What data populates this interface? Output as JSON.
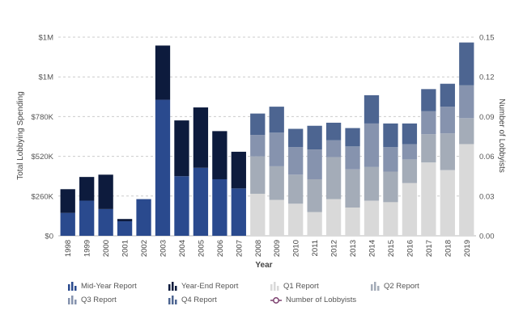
{
  "chart_data": {
    "type": "bar",
    "stacked": true,
    "categories": [
      "1998",
      "1999",
      "2000",
      "2001",
      "2002",
      "2003",
      "2004",
      "2005",
      "2006",
      "2007",
      "2008",
      "2009",
      "2010",
      "2011",
      "2012",
      "2013",
      "2014",
      "2015",
      "2016",
      "2017",
      "2018",
      "2019"
    ],
    "xlabel": "Year",
    "ylabel": "Total Lobbying Spending",
    "y2label": "Number of Lobbyists",
    "ylim": [
      0,
      1300000
    ],
    "yticks": [
      "$0",
      "$260K",
      "$520K",
      "$780K",
      "$1M",
      "$1M"
    ],
    "y2lim": [
      0,
      0.15
    ],
    "y2ticks": [
      "0.00",
      "0.03",
      "0.06",
      "0.09",
      "0.12",
      "0.15"
    ],
    "grid": true,
    "legend_position": "bottom",
    "series": [
      {
        "name": "Mid-Year Report",
        "color": "#2a4a8e",
        "values": [
          150000,
          230000,
          175000,
          95000,
          240000,
          890000,
          390000,
          445000,
          370000,
          310000,
          null,
          null,
          null,
          null,
          null,
          null,
          null,
          null,
          null,
          null,
          null,
          null
        ]
      },
      {
        "name": "Year-End Report",
        "color": "#0d1b3d",
        "values": [
          155000,
          155000,
          225000,
          15000,
          0,
          355000,
          365000,
          395000,
          315000,
          240000,
          null,
          null,
          null,
          null,
          null,
          null,
          null,
          null,
          null,
          null,
          null,
          null
        ]
      },
      {
        "name": "Q1 Report",
        "color": "#d9d9d9",
        "values": [
          null,
          null,
          null,
          null,
          null,
          null,
          null,
          null,
          null,
          null,
          275000,
          235000,
          210000,
          155000,
          240000,
          185000,
          230000,
          220000,
          345000,
          480000,
          430000,
          600000
        ]
      },
      {
        "name": "Q2 Report",
        "color": "#a4acb8",
        "values": [
          null,
          null,
          null,
          null,
          null,
          null,
          null,
          null,
          null,
          null,
          245000,
          220000,
          190000,
          215000,
          275000,
          250000,
          220000,
          200000,
          155000,
          185000,
          240000,
          170000
        ]
      },
      {
        "name": "Q3 Report",
        "color": "#8693ae",
        "values": [
          null,
          null,
          null,
          null,
          null,
          null,
          null,
          null,
          null,
          null,
          140000,
          220000,
          180000,
          195000,
          110000,
          150000,
          285000,
          160000,
          100000,
          150000,
          175000,
          215000
        ]
      },
      {
        "name": "Q4 Report",
        "color": "#4d6591",
        "values": [
          null,
          null,
          null,
          null,
          null,
          null,
          null,
          null,
          null,
          null,
          140000,
          170000,
          120000,
          155000,
          115000,
          120000,
          185000,
          155000,
          135000,
          145000,
          150000,
          280000
        ]
      }
    ],
    "line_series": {
      "name": "Number of Lobbyists",
      "color": "#7b3f6e",
      "values": []
    }
  },
  "legend": [
    {
      "label": "Mid-Year Report",
      "icon": "bar-icon",
      "color": "#2a4a8e"
    },
    {
      "label": "Year-End Report",
      "icon": "bar-icon",
      "color": "#0d1b3d"
    },
    {
      "label": "Q1 Report",
      "icon": "bar-icon",
      "color": "#d9d9d9"
    },
    {
      "label": "Q2 Report",
      "icon": "bar-icon",
      "color": "#a4acb8"
    },
    {
      "label": "Q3 Report",
      "icon": "bar-icon",
      "color": "#8693ae"
    },
    {
      "label": "Q4 Report",
      "icon": "bar-icon",
      "color": "#4d6591"
    },
    {
      "label": "Number of Lobbyists",
      "icon": "line-marker-icon",
      "color": "#7b3f6e"
    }
  ]
}
